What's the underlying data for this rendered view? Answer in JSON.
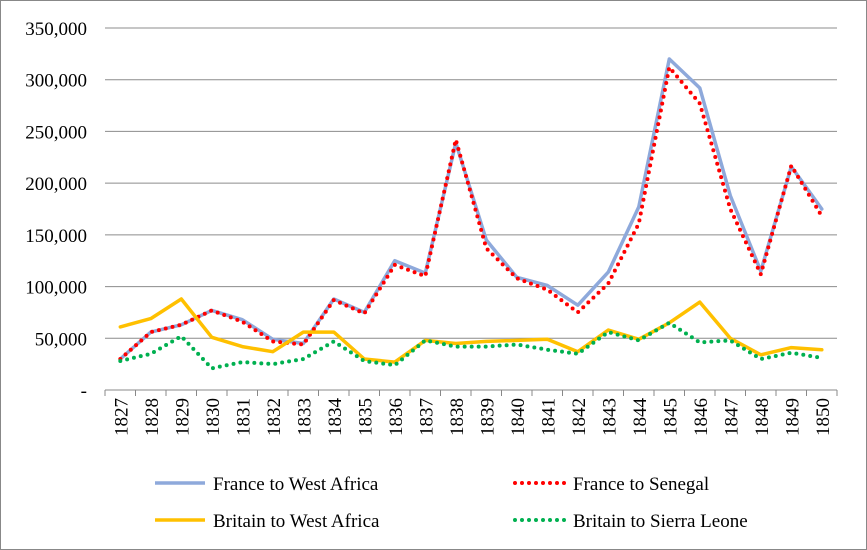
{
  "chart_data": {
    "type": "line",
    "title": "",
    "xlabel": "",
    "ylabel": "",
    "categories": [
      "1827",
      "1828",
      "1829",
      "1830",
      "1831",
      "1832",
      "1833",
      "1834",
      "1835",
      "1836",
      "1837",
      "1838",
      "1839",
      "1840",
      "1841",
      "1842",
      "1843",
      "1844",
      "1845",
      "1846",
      "1847",
      "1848",
      "1849",
      "1850"
    ],
    "ylim": [
      0,
      350000
    ],
    "yticks": [
      {
        "value": 0,
        "label": "-"
      },
      {
        "value": 50000,
        "label": "50,000"
      },
      {
        "value": 100000,
        "label": "100,000"
      },
      {
        "value": 150000,
        "label": "150,000"
      },
      {
        "value": 200000,
        "label": "200,000"
      },
      {
        "value": 250000,
        "label": "250,000"
      },
      {
        "value": 300000,
        "label": "300,000"
      },
      {
        "value": 350000,
        "label": "350,000"
      }
    ],
    "grid": true,
    "legend_position": "bottom",
    "series": [
      {
        "name": "France to West Africa",
        "color": "#8EA9DB",
        "style": "solid",
        "values": [
          30000,
          56000,
          63000,
          77000,
          68000,
          49000,
          45000,
          88000,
          75000,
          125000,
          113000,
          239000,
          145000,
          109000,
          101000,
          82000,
          114000,
          177000,
          320000,
          292000,
          188000,
          115000,
          216000,
          175000
        ]
      },
      {
        "name": "France to Senegal",
        "color": "#FF0000",
        "style": "dotted",
        "values": [
          30000,
          56000,
          63000,
          77000,
          66000,
          47000,
          44000,
          87000,
          74000,
          121000,
          110000,
          242000,
          137000,
          108000,
          97000,
          75000,
          103000,
          161000,
          312000,
          277000,
          175000,
          112000,
          217000,
          168000
        ]
      },
      {
        "name": "Britain to West Africa",
        "color": "#FFC000",
        "style": "solid",
        "values": [
          61000,
          69000,
          88000,
          51000,
          42000,
          37000,
          56000,
          56000,
          30000,
          27000,
          48000,
          45000,
          47000,
          48000,
          49000,
          37000,
          58000,
          49000,
          65000,
          85000,
          50000,
          34000,
          41000,
          39000
        ]
      },
      {
        "name": "Britain to Sierra Leone",
        "color": "#00B050",
        "style": "dotted",
        "values": [
          28000,
          35000,
          52000,
          21000,
          27000,
          25000,
          30000,
          47000,
          28000,
          24000,
          48000,
          42000,
          42000,
          44000,
          39000,
          35000,
          56000,
          48000,
          65000,
          46000,
          48000,
          30000,
          36000,
          31000
        ]
      }
    ]
  }
}
